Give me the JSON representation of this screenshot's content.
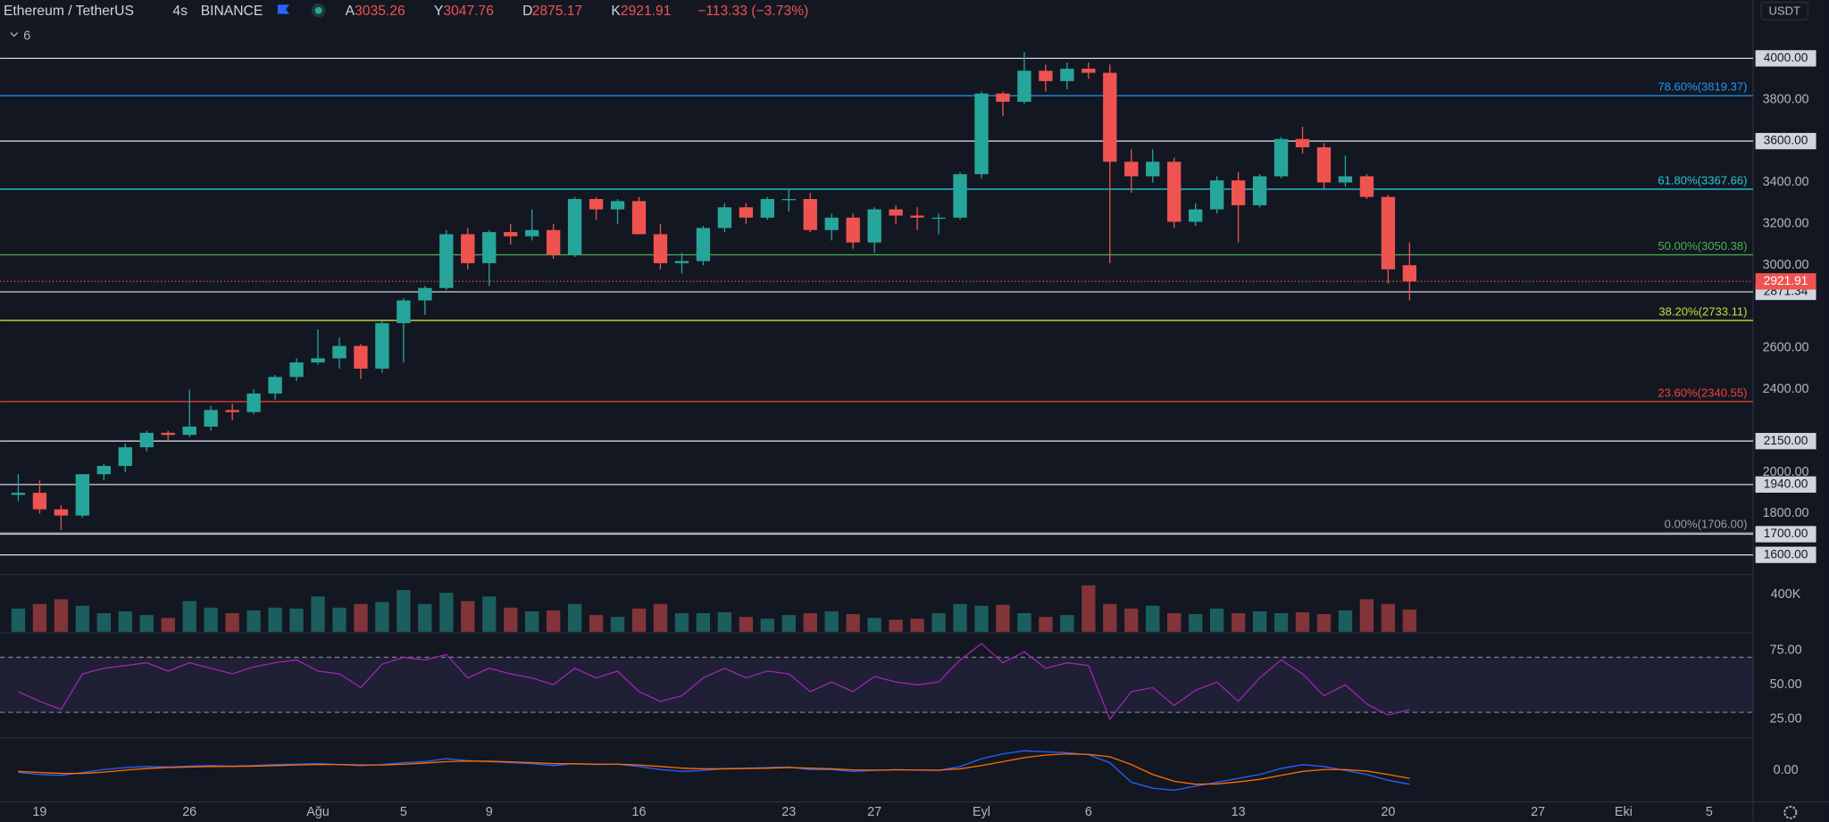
{
  "chart_data": [
    {
      "type": "candlestick",
      "title": "Ethereum / TetherUS",
      "interval": "4s",
      "exchange": "BINANCE",
      "ohlc_legend": {
        "labels": [
          "A",
          "Y",
          "D",
          "K"
        ],
        "values": [
          3035.26,
          3047.76,
          2875.17,
          2921.91
        ],
        "change": "−113.33 (−3.73%)"
      },
      "indicator_count": 6,
      "currency": "USDT",
      "up_color": "#26a69a",
      "down_color": "#ef5350",
      "x": [
        -1,
        0,
        1,
        2,
        3,
        4,
        5,
        6,
        7,
        8,
        9,
        10,
        11,
        12,
        13,
        14,
        15,
        16,
        17,
        18,
        19,
        20,
        21,
        22,
        23,
        24,
        25,
        26,
        27,
        28,
        29,
        30,
        31,
        32,
        33,
        34,
        35,
        36,
        37,
        38,
        39,
        40,
        41,
        42,
        43,
        44,
        45,
        46,
        47,
        48,
        49,
        50,
        51,
        52,
        53,
        54,
        55,
        56,
        57,
        58,
        59,
        60,
        61,
        62,
        63,
        64
      ],
      "open": [
        1890,
        1900,
        1820,
        1790,
        1990,
        2030,
        2120,
        2190,
        2180,
        2220,
        2300,
        2290,
        2380,
        2460,
        2530,
        2550,
        2610,
        2500,
        2720,
        2830,
        2890,
        3150,
        3010,
        3160,
        3140,
        3170,
        3050,
        3320,
        3270,
        3310,
        3150,
        3010,
        3020,
        3180,
        3280,
        3230,
        3320,
        3320,
        3170,
        3230,
        3110,
        3270,
        3240,
        3230,
        3230,
        3440,
        3830,
        3790,
        3940,
        3890,
        3950,
        3930,
        3500,
        3430,
        3500,
        3210,
        3270,
        3410,
        3290,
        3430,
        3610,
        3570,
        3400,
        3430,
        3330,
        3000
      ],
      "high": [
        1990,
        1960,
        1840,
        1990,
        2040,
        2140,
        2200,
        2200,
        2400,
        2320,
        2330,
        2400,
        2470,
        2550,
        2690,
        2650,
        2620,
        2730,
        2840,
        2900,
        3170,
        3180,
        3170,
        3200,
        3270,
        3200,
        3330,
        3330,
        3320,
        3330,
        3200,
        3060,
        3190,
        3300,
        3300,
        3330,
        3370,
        3350,
        3250,
        3250,
        3280,
        3290,
        3280,
        3250,
        3450,
        3840,
        3840,
        4030,
        3970,
        3980,
        3980,
        3970,
        3560,
        3560,
        3520,
        3300,
        3430,
        3450,
        3440,
        3620,
        3670,
        3590,
        3530,
        3440,
        3340,
        3110
      ],
      "low": [
        1860,
        1800,
        1720,
        1780,
        1960,
        2000,
        2100,
        2150,
        2170,
        2200,
        2250,
        2280,
        2350,
        2440,
        2520,
        2500,
        2450,
        2480,
        2530,
        2760,
        2880,
        2980,
        2900,
        3100,
        3120,
        3030,
        3040,
        3220,
        3200,
        3150,
        2980,
        2960,
        3000,
        3160,
        3200,
        3220,
        3260,
        3160,
        3120,
        3080,
        3060,
        3200,
        3170,
        3150,
        3220,
        3420,
        3720,
        3780,
        3840,
        3850,
        3900,
        3010,
        3350,
        3400,
        3180,
        3190,
        3250,
        3110,
        3280,
        3420,
        3540,
        3370,
        3380,
        3320,
        2910,
        2830
      ],
      "close": [
        1900,
        1820,
        1790,
        1990,
        2030,
        2120,
        2190,
        2180,
        2220,
        2300,
        2290,
        2380,
        2460,
        2530,
        2550,
        2610,
        2500,
        2720,
        2830,
        2890,
        3150,
        3010,
        3160,
        3140,
        3170,
        3050,
        3320,
        3270,
        3310,
        3150,
        3010,
        3020,
        3180,
        3280,
        3230,
        3320,
        3320,
        3170,
        3230,
        3110,
        3270,
        3240,
        3230,
        3230,
        3440,
        3830,
        3790,
        3940,
        3890,
        3950,
        3930,
        3500,
        3430,
        3500,
        3210,
        3270,
        3410,
        3290,
        3430,
        3610,
        3570,
        3400,
        3430,
        3330,
        2980,
        2921.91
      ],
      "xlim": [
        -1.85,
        80.05
      ],
      "xticks": [
        {
          "value": 0,
          "label": "19"
        },
        {
          "value": 7,
          "label": "26"
        },
        {
          "value": 13,
          "label": "Ağu"
        },
        {
          "value": 17,
          "label": "5"
        },
        {
          "value": 21,
          "label": "9"
        },
        {
          "value": 28,
          "label": "16"
        },
        {
          "value": 35,
          "label": "23"
        },
        {
          "value": 39,
          "label": "27"
        },
        {
          "value": 44,
          "label": "Eyl"
        },
        {
          "value": 49,
          "label": "6"
        },
        {
          "value": 56,
          "label": "13"
        },
        {
          "value": 63,
          "label": "20"
        },
        {
          "value": 70,
          "label": "27"
        },
        {
          "value": 74,
          "label": "Eki"
        },
        {
          "value": 78,
          "label": "5"
        }
      ],
      "ylim": [
        1510,
        4282
      ],
      "yticks": [
        {
          "value": 3800,
          "label": "3800.00"
        },
        {
          "value": 3400,
          "label": "3400.00"
        },
        {
          "value": 3200,
          "label": "3200.00"
        },
        {
          "value": 3000,
          "label": "3000.00"
        },
        {
          "value": 2600,
          "label": "2600.00"
        },
        {
          "value": 2400,
          "label": "2400.00"
        },
        {
          "value": 2000,
          "label": "2000.00"
        },
        {
          "value": 1800,
          "label": "1800.00"
        }
      ],
      "levels": [
        {
          "value": 4000,
          "label": "4000.00"
        },
        {
          "value": 3600,
          "label": "3600.00"
        },
        2871.34,
        {
          "value": 2150,
          "label": "2150.00"
        },
        {
          "value": 1940,
          "label": "1940.00"
        },
        {
          "value": 1700,
          "label": "1700.00"
        },
        {
          "value": 1600,
          "label": "1600.00"
        }
      ],
      "level_color": "#d1d4dc",
      "fib": [
        {
          "value": 3819.37,
          "label": "78.60%(3819.37)",
          "color": "#2196f3"
        },
        {
          "value": 3367.66,
          "label": "61.80%(3367.66)",
          "color": "#26c6da"
        },
        {
          "value": 3050.38,
          "label": "50.00%(3050.38)",
          "color": "#4caf50"
        },
        {
          "value": 2733.11,
          "label": "38.20%(2733.11)",
          "color": "#cddc39"
        },
        {
          "value": 2340.55,
          "label": "23.60%(2340.55)",
          "color": "#f44336"
        },
        {
          "value": 1706,
          "label": "0.00%(1706.00)",
          "color": "#9e9e9e"
        }
      ],
      "last_price": 2921.91
    },
    {
      "type": "bar",
      "values": [
        250000,
        300000,
        350000,
        280000,
        200000,
        220000,
        180000,
        150000,
        330000,
        260000,
        200000,
        230000,
        260000,
        250000,
        380000,
        260000,
        300000,
        320000,
        450000,
        300000,
        420000,
        330000,
        380000,
        260000,
        220000,
        230000,
        300000,
        180000,
        160000,
        250000,
        300000,
        200000,
        200000,
        210000,
        160000,
        140000,
        180000,
        200000,
        220000,
        190000,
        150000,
        130000,
        140000,
        200000,
        300000,
        280000,
        290000,
        200000,
        160000,
        180000,
        500000,
        300000,
        250000,
        280000,
        200000,
        190000,
        250000,
        200000,
        220000,
        200000,
        210000,
        190000,
        230000,
        350000,
        300000,
        240000
      ],
      "ylim": [
        0,
        590000
      ],
      "yticks": [
        {
          "value": 400000,
          "label": "400K"
        }
      ]
    },
    {
      "type": "line",
      "color": "#9c27b0",
      "values": [
        45,
        38,
        32,
        58,
        62,
        64,
        66,
        60,
        66,
        62,
        58,
        63,
        66,
        68,
        60,
        58,
        48,
        65,
        70,
        68,
        72,
        55,
        62,
        58,
        55,
        50,
        62,
        55,
        60,
        45,
        38,
        42,
        55,
        62,
        55,
        60,
        58,
        45,
        52,
        45,
        56,
        52,
        50,
        52,
        68,
        80,
        66,
        74,
        62,
        66,
        64,
        25,
        45,
        48,
        35,
        46,
        52,
        38,
        55,
        68,
        58,
        42,
        50,
        36,
        28,
        32
      ],
      "ylim": [
        12.3,
        86
      ],
      "yticks": [
        {
          "value": 75,
          "label": "75.00"
        },
        {
          "value": 50,
          "label": "50.00"
        },
        {
          "value": 25,
          "label": "25.00"
        }
      ],
      "levels": [
        70,
        30
      ]
    },
    {
      "type": "line",
      "series": [
        {
          "color": "#2962ff",
          "values": [
            -10,
            -20,
            -25,
            -10,
            5,
            15,
            20,
            18,
            22,
            25,
            22,
            25,
            30,
            32,
            35,
            30,
            25,
            30,
            40,
            45,
            60,
            50,
            45,
            40,
            35,
            25,
            35,
            30,
            32,
            20,
            5,
            -5,
            0,
            10,
            12,
            15,
            18,
            5,
            5,
            -5,
            0,
            5,
            2,
            0,
            20,
            60,
            85,
            100,
            95,
            90,
            80,
            40,
            -60,
            -90,
            -100,
            -80,
            -60,
            -40,
            -20,
            10,
            30,
            20,
            0,
            -20,
            -50,
            -70
          ]
        },
        {
          "color": "#ff6d00",
          "values": [
            -5,
            -10,
            -15,
            -15,
            -8,
            2,
            10,
            15,
            18,
            20,
            21,
            22,
            25,
            28,
            30,
            30,
            28,
            28,
            32,
            38,
            45,
            48,
            47,
            44,
            40,
            35,
            34,
            32,
            32,
            28,
            20,
            12,
            8,
            8,
            10,
            12,
            15,
            12,
            8,
            3,
            2,
            3,
            3,
            2,
            8,
            25,
            45,
            65,
            78,
            84,
            82,
            70,
            30,
            -20,
            -55,
            -70,
            -68,
            -58,
            -45,
            -25,
            -5,
            5,
            5,
            -3,
            -20,
            -40
          ]
        }
      ],
      "ylim": [
        -160,
        160
      ],
      "yticks": [
        {
          "value": 0,
          "label": "0.00"
        }
      ]
    }
  ]
}
